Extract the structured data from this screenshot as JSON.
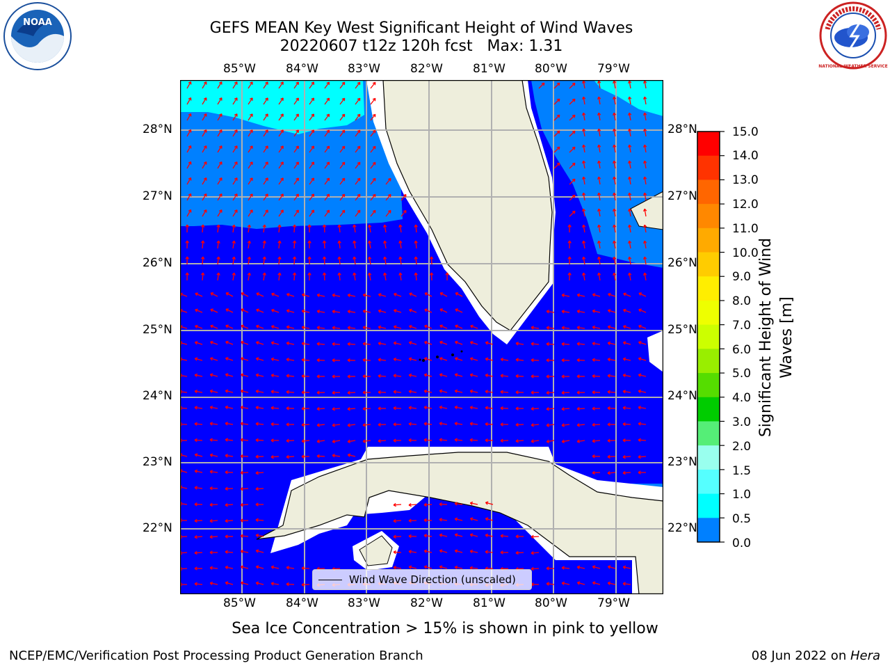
{
  "title": {
    "line1": "GEFS MEAN Key West Significant Height of Wind Waves",
    "line2": "20220607 t12z 120h fcst   Max: 1.31"
  },
  "logos": {
    "left": "NOAA",
    "right": "NATIONAL WEATHER SERVICE"
  },
  "map": {
    "lon_ticks": [
      "85°W",
      "84°W",
      "83°W",
      "82°W",
      "81°W",
      "80°W",
      "79°W"
    ],
    "lat_ticks": [
      "28°N",
      "27°N",
      "26°N",
      "25°N",
      "24°N",
      "23°N",
      "22°N"
    ],
    "legend_label": "Wind Wave Direction (unscaled)",
    "colors": {
      "sea_low": "#0000ff",
      "sea_mid": "#0080ff",
      "sea_high": "#00ffff",
      "land": "#eeeedc",
      "arrow": "#ff0000",
      "grid": "#b0b0b0"
    }
  },
  "colorbar": {
    "ticks": [
      "15.0",
      "14.0",
      "13.0",
      "12.0",
      "11.0",
      "10.0",
      "9.0",
      "8.0",
      "7.0",
      "6.0",
      "5.0",
      "4.0",
      "3.0",
      "2.0",
      "1.5",
      "1.0",
      "0.5",
      "0.0"
    ],
    "colors": [
      "#ff0000",
      "#ff3300",
      "#ff6600",
      "#ff8800",
      "#ffaa00",
      "#ffcc00",
      "#ffee00",
      "#eeff00",
      "#ccff00",
      "#99ee00",
      "#55dd00",
      "#00cc00",
      "#55ee77",
      "#99ffee",
      "#55ffff",
      "#00ffff",
      "#0080ff",
      "#0000ff"
    ],
    "label": "Significant Height of Wind Waves [m]",
    "label_line1": "Significant Height of Wind",
    "label_line2": "Waves [m]"
  },
  "caption": "Sea Ice Concentration > 15% is shown in pink to yellow",
  "footer": {
    "left": "NCEP/EMC/Verification Post Processing Product Generation Branch",
    "date": "08 Jun 2022 on ",
    "machine": "Hera"
  }
}
